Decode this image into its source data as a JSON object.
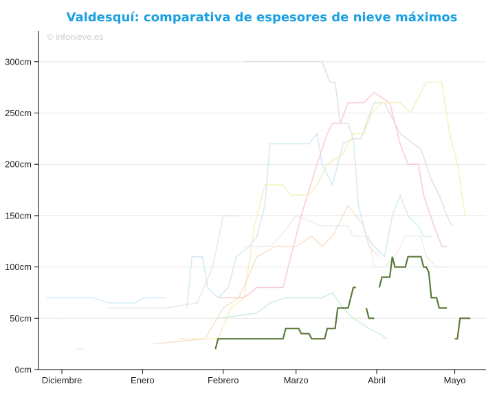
{
  "chart_data": {
    "type": "line",
    "title": "Valdesquí: comparativa de espesores de nieve máximos",
    "credit": "© infonieve.es",
    "xlabel": "",
    "ylabel": "",
    "x_unit": "days since 1 December",
    "x_range": [
      -9,
      163
    ],
    "x_ticks": [
      {
        "label": "Diciembre",
        "day": 0
      },
      {
        "label": "Enero",
        "day": 31
      },
      {
        "label": "Febrero",
        "day": 62
      },
      {
        "label": "Marzo",
        "day": 90
      },
      {
        "label": "Abril",
        "day": 121
      },
      {
        "label": "Mayo",
        "day": 151
      }
    ],
    "y_unit": "cm",
    "ylim": [
      0,
      330
    ],
    "y_ticks": [
      "0cm",
      "50cm",
      "100cm",
      "150cm",
      "200cm",
      "250cm",
      "300cm"
    ],
    "y_tick_values": [
      0,
      50,
      100,
      150,
      200,
      250,
      300
    ],
    "grid": true,
    "colors": {
      "title": "#1ba1e2",
      "highlight": "#5a7a3a",
      "grid": "#e6e6e6",
      "axis": "#000000"
    },
    "highlight_series": {
      "segments": [
        [
          [
            59,
            20
          ],
          [
            60,
            30
          ],
          [
            85,
            30
          ],
          [
            86,
            40
          ],
          [
            91,
            40
          ],
          [
            92,
            35
          ],
          [
            95,
            35
          ],
          [
            96,
            30
          ],
          [
            101,
            30
          ],
          [
            102,
            40
          ],
          [
            105,
            40
          ],
          [
            106,
            60
          ],
          [
            110,
            60
          ],
          [
            112,
            80
          ],
          [
            113,
            80
          ]
        ],
        [
          [
            117,
            60
          ],
          [
            118,
            50
          ],
          [
            120,
            50
          ]
        ],
        [
          [
            122,
            80
          ],
          [
            123,
            90
          ],
          [
            126,
            90
          ],
          [
            127,
            110
          ],
          [
            128,
            100
          ],
          [
            132,
            100
          ],
          [
            133,
            110
          ],
          [
            138,
            110
          ],
          [
            139,
            100
          ],
          [
            140,
            100
          ],
          [
            141,
            95
          ],
          [
            142,
            70
          ],
          [
            144,
            70
          ],
          [
            145,
            60
          ],
          [
            148,
            60
          ]
        ],
        [
          [
            151,
            30
          ],
          [
            152,
            30
          ],
          [
            153,
            50
          ],
          [
            157,
            50
          ]
        ]
      ]
    },
    "background_series": [
      {
        "color": "#dddddd",
        "points": [
          [
            70,
            300
          ],
          [
            100,
            300
          ],
          [
            103,
            280
          ],
          [
            105,
            280
          ],
          [
            107,
            240
          ],
          [
            110,
            240
          ],
          [
            112,
            225
          ],
          [
            115,
            225
          ],
          [
            117,
            240
          ],
          [
            120,
            260
          ],
          [
            124,
            260
          ],
          [
            126,
            250
          ],
          [
            130,
            230
          ],
          [
            135,
            220
          ],
          [
            138,
            215
          ],
          [
            142,
            185
          ],
          [
            145,
            170
          ],
          [
            148,
            150
          ],
          [
            150,
            140
          ]
        ]
      },
      {
        "color": "#f7c6cf",
        "points": [
          [
            60,
            70
          ],
          [
            70,
            70
          ],
          [
            75,
            80
          ],
          [
            85,
            80
          ],
          [
            87,
            100
          ],
          [
            92,
            150
          ],
          [
            98,
            200
          ],
          [
            102,
            230
          ],
          [
            104,
            240
          ],
          [
            107,
            240
          ],
          [
            110,
            260
          ],
          [
            116,
            260
          ],
          [
            120,
            270
          ],
          [
            126,
            260
          ],
          [
            130,
            220
          ],
          [
            133,
            200
          ],
          [
            137,
            200
          ],
          [
            139,
            170
          ],
          [
            143,
            140
          ],
          [
            146,
            120
          ],
          [
            148,
            120
          ]
        ]
      },
      {
        "color": "#cbe7f3",
        "points": [
          [
            48,
            60
          ],
          [
            50,
            110
          ],
          [
            54,
            110
          ],
          [
            56,
            80
          ],
          [
            60,
            70
          ],
          [
            64,
            80
          ],
          [
            67,
            110
          ],
          [
            72,
            120
          ],
          [
            75,
            130
          ],
          [
            78,
            160
          ],
          [
            80,
            220
          ],
          [
            95,
            220
          ],
          [
            98,
            230
          ],
          [
            100,
            200
          ],
          [
            104,
            180
          ],
          [
            108,
            220
          ],
          [
            112,
            225
          ],
          [
            114,
            160
          ],
          [
            117,
            130
          ],
          [
            120,
            120
          ],
          [
            124,
            110
          ],
          [
            127,
            150
          ],
          [
            130,
            170
          ],
          [
            133,
            150
          ],
          [
            137,
            140
          ],
          [
            139,
            130
          ],
          [
            142,
            130
          ]
        ]
      },
      {
        "color": "#f3f0b8",
        "points": [
          [
            45,
            30
          ],
          [
            60,
            30
          ],
          [
            65,
            60
          ],
          [
            70,
            70
          ],
          [
            74,
            140
          ],
          [
            78,
            180
          ],
          [
            85,
            180
          ],
          [
            88,
            170
          ],
          [
            95,
            170
          ],
          [
            98,
            180
          ],
          [
            102,
            200
          ],
          [
            105,
            205
          ],
          [
            108,
            210
          ],
          [
            112,
            230
          ],
          [
            116,
            230
          ],
          [
            119,
            250
          ],
          [
            123,
            260
          ],
          [
            130,
            260
          ],
          [
            134,
            250
          ],
          [
            140,
            280
          ],
          [
            146,
            280
          ],
          [
            149,
            230
          ],
          [
            152,
            200
          ],
          [
            155,
            150
          ]
        ]
      },
      {
        "color": "#f8ddc4",
        "points": [
          [
            35,
            25
          ],
          [
            55,
            30
          ],
          [
            62,
            60
          ],
          [
            68,
            70
          ],
          [
            75,
            110
          ],
          [
            82,
            120
          ],
          [
            90,
            120
          ],
          [
            96,
            130
          ],
          [
            100,
            120
          ],
          [
            104,
            130
          ],
          [
            108,
            150
          ],
          [
            110,
            160
          ],
          [
            113,
            150
          ],
          [
            116,
            140
          ],
          [
            118,
            120
          ],
          [
            122,
            110
          ]
        ]
      },
      {
        "color": "#c9ecd5",
        "points": [
          [
            60,
            50
          ],
          [
            75,
            55
          ],
          [
            80,
            65
          ],
          [
            86,
            70
          ],
          [
            100,
            70
          ],
          [
            104,
            75
          ],
          [
            108,
            60
          ],
          [
            112,
            50
          ],
          [
            118,
            40
          ],
          [
            122,
            35
          ],
          [
            125,
            30
          ]
        ]
      },
      {
        "color": "#e5e5e5",
        "points": [
          [
            18,
            60
          ],
          [
            40,
            60
          ],
          [
            52,
            65
          ],
          [
            58,
            100
          ],
          [
            62,
            150
          ],
          [
            68,
            150
          ]
        ]
      },
      {
        "color": "#d0eaf5",
        "points": [
          [
            -6,
            70
          ],
          [
            12,
            70
          ],
          [
            18,
            65
          ],
          [
            28,
            65
          ],
          [
            32,
            70
          ],
          [
            40,
            70
          ]
        ]
      },
      {
        "color": "#ebebeb",
        "points": [
          [
            70,
            120
          ],
          [
            80,
            120
          ],
          [
            84,
            130
          ],
          [
            90,
            150
          ],
          [
            100,
            140
          ],
          [
            104,
            140
          ],
          [
            110,
            140
          ],
          [
            112,
            130
          ],
          [
            118,
            130
          ],
          [
            120,
            100
          ],
          [
            124,
            100
          ],
          [
            128,
            110
          ],
          [
            132,
            130
          ],
          [
            138,
            130
          ],
          [
            140,
            110
          ],
          [
            144,
            100
          ],
          [
            148,
            100
          ]
        ]
      },
      {
        "color": "#eeeeee",
        "points": [
          [
            -3,
            50
          ],
          [
            3,
            50
          ]
        ]
      },
      {
        "color": "#eeeeee",
        "points": [
          [
            5,
            20
          ],
          [
            9,
            20
          ]
        ]
      }
    ]
  }
}
